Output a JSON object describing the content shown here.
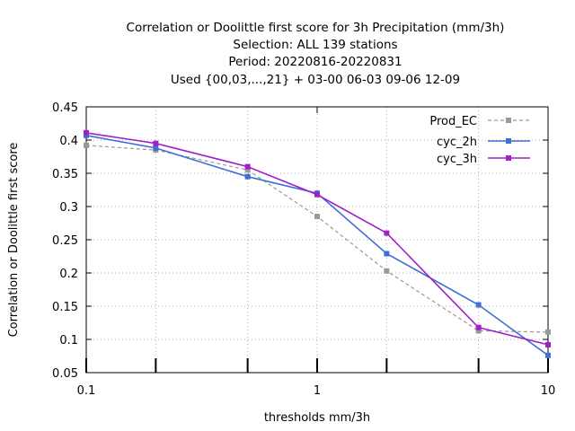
{
  "chart_data": {
    "type": "line",
    "title_lines": [
      "Correlation or Doolittle first score  for 3h Precipitation (mm/3h)",
      "Selection: ALL    139 stations",
      "Period: 20220816-20220831",
      "Used {00,03,...,21} + 03-00 06-03 09-06 12-09"
    ],
    "xlabel": "thresholds mm/3h",
    "ylabel": "Correlation or Doolittle first score",
    "x_scale": "log",
    "xlim": [
      0.1,
      10
    ],
    "ylim": [
      0.05,
      0.45
    ],
    "x_ticks": [
      0.1,
      1,
      10
    ],
    "x_tick_labels": [
      "0.1",
      "1",
      "10"
    ],
    "y_ticks": [
      0.05,
      0.1,
      0.15,
      0.2,
      0.25,
      0.3,
      0.35,
      0.4,
      0.45
    ],
    "y_tick_labels": [
      "0.05",
      "0.1",
      "0.15",
      "0.2",
      "0.25",
      "0.3",
      "0.35",
      "0.4",
      "0.45"
    ],
    "grid": true,
    "legend_position": "top-right",
    "x": [
      0.1,
      0.2,
      0.5,
      1,
      2,
      5,
      10
    ],
    "series": [
      {
        "name": "Prod_EC",
        "color": "#999999",
        "dash": true,
        "values": [
          0.392,
          0.385,
          0.355,
          0.285,
          0.203,
          0.113,
          0.111
        ]
      },
      {
        "name": "cyc_2h",
        "color": "#3d6fd4",
        "dash": false,
        "values": [
          0.407,
          0.388,
          0.345,
          0.32,
          0.229,
          0.152,
          0.076
        ]
      },
      {
        "name": "cyc_3h",
        "color": "#a020c8",
        "dash": false,
        "values": [
          0.411,
          0.395,
          0.36,
          0.318,
          0.26,
          0.118,
          0.092
        ]
      }
    ]
  }
}
